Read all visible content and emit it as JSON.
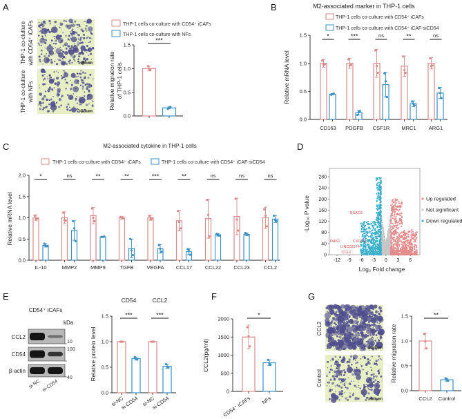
{
  "panel_labels": {
    "A": "A",
    "B": "B",
    "C": "C",
    "D": "D",
    "E": "E",
    "F": "F",
    "G": "G"
  },
  "colors": {
    "series0": "#d98a8a",
    "series1": "#3a8fc4",
    "down": "#3aaecb",
    "up": "#e58a8a",
    "ns": "#c6c6c6",
    "gene_label": "#d84a4a",
    "micro_bg": "#e8efc4",
    "micro_cell": "#4f4d8e"
  },
  "panelA": {
    "image_labels": [
      [
        "THP-1 co-clulture",
        "with CD54⁺ iCAFs"
      ],
      [
        "THP-1 co-clulture",
        "with NFs"
      ]
    ],
    "scale_bar": "100um",
    "legend": [
      "THP-1 cells co-culture with CD54⁺ iCAFs",
      "THP-1 cells co-culture with  NFs"
    ]
  },
  "panelB": {
    "title": "M2-associated marker in THP-1 cells",
    "legend": [
      "THP-1 cells co-culture with  CD54⁺ iCAFs",
      "THP-1 cells co-culture with  CD54⁺ iCAF-siCD54"
    ]
  },
  "panelC": {
    "title": "M2-associated cytokine in THP-1 cells",
    "legend": [
      "THP-1 cells  co-culture with CD54⁺ iCAFs",
      "THP-1 cells co-culture with CD54⁺ iCAF-siCD54"
    ]
  },
  "panelE": {
    "blot_title": "CD54⁺ iCAFs",
    "kda": "kDa",
    "rows": [
      "CCL2",
      "CD54",
      "β-actin"
    ],
    "markers": [
      "10",
      "100",
      "40"
    ],
    "lanes": [
      "si-NC",
      "si-CD54"
    ]
  },
  "panelG": {
    "image_labels": [
      "CCL2",
      "Control"
    ],
    "scale_bar": "100µm"
  },
  "chart_data": [
    {
      "id": "A",
      "type": "bar",
      "title": "",
      "ylabel": [
        "Relative migration rate",
        "of THP-1 cells"
      ],
      "xlabel": "",
      "ylim": [
        0,
        1.5
      ],
      "yticks": [
        0,
        0.5,
        1,
        1.5
      ],
      "ytick_labels": [
        "0.0",
        "0.5",
        "1.0",
        "1.5"
      ],
      "groups": [
        {
          "label": "",
          "sig": "***",
          "bars": [
            {
              "label": "",
              "series": 0,
              "value": 1.0,
              "error": 0.05,
              "points": [
                1.05,
                0.99,
                0.97
              ]
            },
            {
              "label": "",
              "series": 1,
              "value": 0.17,
              "error": 0.02,
              "points": [
                0.15,
                0.18,
                0.19
              ]
            }
          ]
        }
      ]
    },
    {
      "id": "B",
      "type": "bar",
      "title": "M2-associated marker in THP-1 cells",
      "ylabel": [
        "Relative mRNA level"
      ],
      "xlabel": "",
      "ylim": [
        0,
        1.5
      ],
      "yticks": [
        0,
        0.5,
        1,
        1.5
      ],
      "ytick_labels": [
        "0.0",
        "0.5",
        "1.0",
        "1.5"
      ],
      "groups": [
        {
          "label": "CD163",
          "sig": "*",
          "bars": [
            {
              "series": 0,
              "value": 1.0,
              "error": 0.07,
              "points": [
                1.05,
                0.97,
                0.98
              ]
            },
            {
              "series": 1,
              "value": 0.45,
              "error": 0.01,
              "points": [
                0.44,
                0.45,
                0.46
              ]
            }
          ]
        },
        {
          "label": "PDGFB",
          "sig": "***",
          "bars": [
            {
              "series": 0,
              "value": 1.0,
              "error": 0.09,
              "points": [
                1.07,
                0.96,
                0.97
              ]
            },
            {
              "series": 1,
              "value": 0.12,
              "error": 0.04,
              "points": [
                0.08,
                0.13,
                0.15
              ]
            }
          ]
        },
        {
          "label": "CSF1R",
          "sig": "ns",
          "bars": [
            {
              "series": 0,
              "value": 1.0,
              "error": 0.25,
              "points": [
                1.23,
                0.95,
                0.83
              ]
            },
            {
              "series": 1,
              "value": 0.62,
              "error": 0.22,
              "points": [
                0.82,
                0.68,
                0.4
              ]
            }
          ]
        },
        {
          "label": "MRC1",
          "sig": "**",
          "bars": [
            {
              "series": 0,
              "value": 0.95,
              "error": 0.18,
              "points": [
                1.12,
                0.88,
                0.83
              ]
            },
            {
              "series": 1,
              "value": 0.28,
              "error": 0.05,
              "points": [
                0.32,
                0.28,
                0.25
              ]
            }
          ]
        },
        {
          "label": "ARG1",
          "sig": "ns",
          "bars": [
            {
              "series": 0,
              "value": 1.0,
              "error": 0.1,
              "points": [
                1.09,
                0.95,
                0.96
              ]
            },
            {
              "series": 1,
              "value": 0.47,
              "error": 0.1,
              "points": [
                0.56,
                0.47,
                0.38
              ]
            }
          ]
        }
      ]
    },
    {
      "id": "C",
      "type": "bar",
      "title": "M2-associated cytokine in THP-1 cells",
      "ylabel": [
        "Relative mRNA level"
      ],
      "xlabel": "",
      "ylim": [
        0,
        2.0
      ],
      "yticks": [
        0,
        0.5,
        1,
        1.5,
        2
      ],
      "ytick_labels": [
        "0.0",
        "0.5",
        "1.0",
        "1.5",
        "2.0"
      ],
      "groups": [
        {
          "label": "IL-10",
          "sig": "*",
          "bars": [
            {
              "series": 0,
              "value": 1.0,
              "error": 0.07,
              "points": [
                1.05,
                0.97,
                0.98
              ]
            },
            {
              "series": 1,
              "value": 0.35,
              "error": 0.04,
              "points": [
                0.39,
                0.34,
                0.33
              ]
            }
          ]
        },
        {
          "label": "MMP2",
          "sig": "ns",
          "bars": [
            {
              "series": 0,
              "value": 1.0,
              "error": 0.14,
              "points": [
                1.12,
                0.95,
                0.93
              ]
            },
            {
              "series": 1,
              "value": 0.7,
              "error": 0.23,
              "points": [
                0.92,
                0.75,
                0.45
              ]
            }
          ]
        },
        {
          "label": "MMP9",
          "sig": "**",
          "bars": [
            {
              "series": 0,
              "value": 1.05,
              "error": 0.19,
              "points": [
                1.22,
                1.0,
                0.92
              ]
            },
            {
              "series": 1,
              "value": 0.55,
              "error": 0.01,
              "points": [
                0.55,
                0.55,
                0.56
              ]
            }
          ]
        },
        {
          "label": "TGFB",
          "sig": "**",
          "bars": [
            {
              "series": 0,
              "value": 1.0,
              "error": 0.03,
              "points": [
                1.02,
                0.99,
                0.99
              ]
            },
            {
              "series": 1,
              "value": 0.28,
              "error": 0.22,
              "points": [
                0.5,
                0.23,
                0.12
              ]
            }
          ]
        },
        {
          "label": "VEGFA",
          "sig": "***",
          "bars": [
            {
              "series": 0,
              "value": 1.0,
              "error": 0.06,
              "points": [
                1.05,
                0.97,
                0.98
              ]
            },
            {
              "series": 1,
              "value": 0.27,
              "error": 0.1,
              "points": [
                0.36,
                0.27,
                0.2
              ]
            }
          ]
        },
        {
          "label": "CCL17",
          "sig": "**",
          "bars": [
            {
              "series": 0,
              "value": 0.93,
              "error": 0.24,
              "points": [
                1.16,
                0.9,
                0.75
              ]
            },
            {
              "series": 1,
              "value": 0.2,
              "error": 0.07,
              "points": [
                0.26,
                0.24,
                0.13
              ]
            }
          ]
        },
        {
          "label": "CCL22",
          "sig": "ns",
          "bars": [
            {
              "series": 0,
              "value": 0.98,
              "error": 0.46,
              "points": [
                1.42,
                1.07,
                0.56
              ]
            },
            {
              "series": 1,
              "value": 0.6,
              "error": 0.03,
              "points": [
                0.62,
                0.6,
                0.58
              ]
            }
          ]
        },
        {
          "label": "CCL23",
          "sig": "ns",
          "bars": [
            {
              "series": 0,
              "value": 1.03,
              "error": 0.43,
              "points": [
                1.45,
                0.96,
                0.7
              ]
            },
            {
              "series": 1,
              "value": 0.61,
              "error": 0.03,
              "points": [
                0.64,
                0.61,
                0.6
              ]
            }
          ]
        },
        {
          "label": "CCL2",
          "sig": "ns",
          "bars": [
            {
              "series": 0,
              "value": 1.0,
              "error": 0.25,
              "points": [
                1.2,
                1.05,
                0.8
              ]
            },
            {
              "series": 1,
              "value": 0.97,
              "error": 0.08,
              "points": [
                1.05,
                0.95,
                0.92
              ]
            }
          ]
        }
      ]
    },
    {
      "id": "D",
      "type": "scatter",
      "title": "",
      "xlabel": "Log₂ Fold change",
      "ylabel": "-Log₁₀ P value",
      "xlim": [
        -13,
        8
      ],
      "ylim": [
        0,
        290
      ],
      "xticks": [
        -12,
        -9,
        -6,
        -3,
        0,
        3,
        6
      ],
      "xtick_labels": [
        "-12",
        "-9",
        "-6",
        "-3",
        "0",
        "3",
        "6"
      ],
      "yticks": [
        0,
        40,
        80,
        120,
        160,
        200,
        240,
        280
      ],
      "ytick_labels": [
        "0",
        "40",
        "80",
        "120",
        "160",
        "200",
        "240",
        "280"
      ],
      "legend": [
        "Up regulated",
        "Not significant",
        "Down regulated"
      ],
      "legend_placement": "right",
      "labeled_genes": [
        {
          "name": "RSAD2",
          "x": -7.3,
          "y": 146
        },
        {
          "name": "OAS1",
          "x": -12.5,
          "y": 42
        },
        {
          "name": "CXCL11",
          "x": -6.4,
          "y": 40
        },
        {
          "name": "LINC02574",
          "x": -8.8,
          "y": 20
        },
        {
          "name": "CCL2",
          "x": -9.7,
          "y": 5
        }
      ]
    },
    {
      "id": "E",
      "type": "bar",
      "title": "",
      "ylabel": [
        "Relative protein level"
      ],
      "xlabel": "",
      "ylim": [
        0,
        1.5
      ],
      "yticks": [
        0,
        0.5,
        1,
        1.5
      ],
      "ytick_labels": [
        "0.0",
        "0.5",
        "1.0",
        "1.5"
      ],
      "groups": [
        {
          "label": "CD54",
          "sig": "***",
          "bars": [
            {
              "label": "si-NC",
              "series": 0,
              "value": 1.0,
              "error": 0.01,
              "points": [
                1.0,
                1.0,
                1.0
              ]
            },
            {
              "label": "si-CD54",
              "series": 1,
              "value": 0.67,
              "error": 0.03,
              "points": [
                0.7,
                0.66,
                0.65
              ]
            }
          ]
        },
        {
          "label": "CCL2",
          "sig": "***",
          "bars": [
            {
              "label": "si-NC",
              "series": 0,
              "value": 1.0,
              "error": 0.01,
              "points": [
                1.0,
                1.0,
                1.0
              ]
            },
            {
              "label": "si-CD54",
              "series": 1,
              "value": 0.52,
              "error": 0.04,
              "points": [
                0.56,
                0.51,
                0.49
              ]
            }
          ]
        }
      ]
    },
    {
      "id": "F",
      "type": "bar",
      "title": "",
      "ylabel": [
        "CCL2(pg/ml)"
      ],
      "xlabel": "",
      "ylim": [
        0,
        2000
      ],
      "yticks": [
        0,
        500,
        1000,
        1500,
        2000
      ],
      "ytick_labels": [
        "0",
        "500",
        "1000",
        "1500",
        "2000"
      ],
      "groups": [
        {
          "label": "",
          "sig": "*",
          "bars": [
            {
              "label": "CD54⁺ iCAFs",
              "series": 0,
              "value": 1500,
              "error": 330,
              "points": [
                1770,
                1520,
                1240
              ]
            },
            {
              "label": "NFs",
              "series": 1,
              "value": 790,
              "error": 80,
              "points": [
                870,
                760,
                740
              ]
            }
          ]
        }
      ]
    },
    {
      "id": "G",
      "type": "bar",
      "title": "",
      "ylabel": [
        "Relative migration rate"
      ],
      "xlabel": "",
      "ylim": [
        0,
        1.5
      ],
      "yticks": [
        0,
        0.5,
        1,
        1.5
      ],
      "ytick_labels": [
        "0.0",
        "0.5",
        "1.0",
        "1.5"
      ],
      "groups": [
        {
          "label": "",
          "sig": "**",
          "bars": [
            {
              "label": "CCL2",
              "series": 0,
              "value": 1.0,
              "error": 0.16,
              "points": [
                1.14,
                0.99,
                0.85
              ]
            },
            {
              "label": "Control",
              "series": 1,
              "value": 0.22,
              "error": 0.03,
              "points": [
                0.25,
                0.22,
                0.2
              ]
            }
          ]
        }
      ]
    }
  ]
}
